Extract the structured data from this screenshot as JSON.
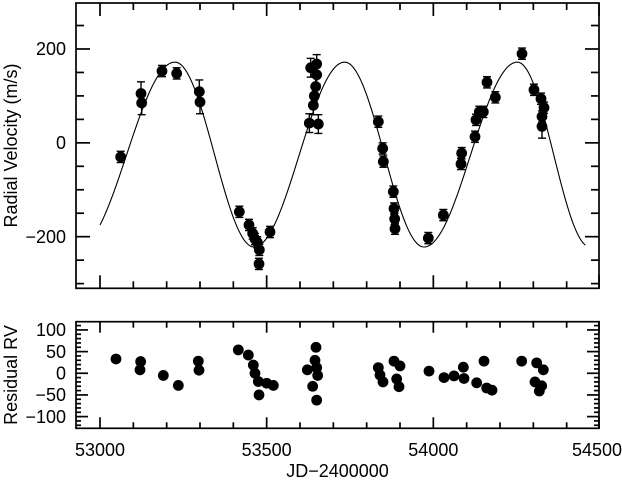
{
  "figure": {
    "background": "#ffffff",
    "foreground": "#000000",
    "marker_color": "#000000",
    "curve_color": "#000000"
  },
  "chart_data": [
    {
      "id": "radial-velocity-panel",
      "type": "scatter",
      "title": "",
      "ylabel": "Radial Velocity (m/s)",
      "x_range": [
        52928,
        54497
      ],
      "y_range": [
        -310,
        298
      ],
      "grid": false,
      "x_ticks": [
        {
          "v": 53000,
          "label": "53000"
        },
        {
          "v": 53500,
          "label": "53500"
        },
        {
          "v": 54000,
          "label": "54000"
        },
        {
          "v": 54500,
          "label": "54500"
        }
      ],
      "x_minor_step": 100,
      "x_tick_labels_shown": false,
      "y_ticks": [
        {
          "v": 200,
          "label": "200"
        },
        {
          "v": 0,
          "label": "0"
        },
        {
          "v": -200,
          "label": "−200"
        }
      ],
      "y_minor_step": 50,
      "points_format": "[JD-2400000, RV m/s, error m/s]",
      "points": [
        [
          53062,
          -30,
          12
        ],
        [
          53123,
          105,
          25
        ],
        [
          53125,
          85,
          25
        ],
        [
          53186,
          153,
          12
        ],
        [
          53230,
          148,
          12
        ],
        [
          53298,
          109,
          25
        ],
        [
          53300,
          87,
          25
        ],
        [
          53418,
          -147,
          12
        ],
        [
          53447,
          -175,
          12
        ],
        [
          53458,
          -193,
          12
        ],
        [
          53465,
          -205,
          12
        ],
        [
          53472,
          -212,
          12
        ],
        [
          53478,
          -228,
          12
        ],
        [
          53477,
          -258,
          12
        ],
        [
          53510,
          -190,
          12
        ],
        [
          53628,
          42,
          20
        ],
        [
          53655,
          40,
          20
        ],
        [
          53632,
          160,
          20
        ],
        [
          53650,
          168,
          20
        ],
        [
          53650,
          145,
          20
        ],
        [
          53647,
          120,
          20
        ],
        [
          53643,
          100,
          20
        ],
        [
          53640,
          80,
          20
        ],
        [
          53835,
          45,
          12
        ],
        [
          53848,
          -12,
          12
        ],
        [
          53850,
          -40,
          12
        ],
        [
          53880,
          -104,
          12
        ],
        [
          53882,
          -140,
          12
        ],
        [
          53884,
          -162,
          12
        ],
        [
          53885,
          -183,
          12
        ],
        [
          53985,
          -203,
          12
        ],
        [
          54030,
          -154,
          12
        ],
        [
          54083,
          -45,
          12
        ],
        [
          54085,
          -22,
          12
        ],
        [
          54125,
          13,
          12
        ],
        [
          54128,
          49,
          12
        ],
        [
          54138,
          66,
          12
        ],
        [
          54150,
          66,
          12
        ],
        [
          54161,
          129,
          12
        ],
        [
          54186,
          97,
          12
        ],
        [
          54266,
          190,
          12
        ],
        [
          54302,
          113,
          12
        ],
        [
          54323,
          94,
          12
        ],
        [
          54332,
          75,
          12
        ],
        [
          54326,
          56,
          12
        ],
        [
          54326,
          35,
          25
        ]
      ],
      "model_curve": {
        "description": "Keplerian orbit fit, approximated by piecewise cosine through extrema",
        "extrema": [
          [
            52935,
            -222
          ],
          [
            53225,
            172
          ],
          [
            53462,
            -222
          ],
          [
            53734,
            172
          ],
          [
            53972,
            -222
          ],
          [
            54252,
            172
          ],
          [
            54470,
            -222
          ]
        ],
        "draw_range": [
          53000,
          54458
        ],
        "period_days": 515,
        "semiamplitude_ms": 197,
        "offset_ms": -25
      }
    },
    {
      "id": "residual-panel",
      "type": "scatter",
      "title": "",
      "ylabel": "Residual RV",
      "xlabel": "JD−2400000",
      "x_range": [
        52928,
        54497
      ],
      "y_range": [
        -127,
        119
      ],
      "grid": false,
      "x_ticks": [
        {
          "v": 53000,
          "label": "53000"
        },
        {
          "v": 53500,
          "label": "53500"
        },
        {
          "v": 54000,
          "label": "54000"
        },
        {
          "v": 54500,
          "label": "54500"
        }
      ],
      "x_minor_step": 100,
      "x_tick_labels_shown": true,
      "y_ticks": [
        {
          "v": 100,
          "label": "100"
        },
        {
          "v": 50,
          "label": "50"
        },
        {
          "v": 0,
          "label": "0"
        },
        {
          "v": -50,
          "label": "−50"
        },
        {
          "v": -100,
          "label": "−100"
        }
      ],
      "y_minor_step": 10,
      "points_format": "[JD-2400000, residual m/s]",
      "points": [
        [
          53048,
          33
        ],
        [
          53120,
          8
        ],
        [
          53122,
          27
        ],
        [
          53190,
          -5
        ],
        [
          53235,
          -28
        ],
        [
          53295,
          28
        ],
        [
          53297,
          7
        ],
        [
          53415,
          54
        ],
        [
          53445,
          42
        ],
        [
          53460,
          19
        ],
        [
          53465,
          0
        ],
        [
          53475,
          -19
        ],
        [
          53477,
          -50
        ],
        [
          53500,
          -23
        ],
        [
          53520,
          -28
        ],
        [
          53622,
          8
        ],
        [
          53638,
          -30
        ],
        [
          53645,
          30
        ],
        [
          53648,
          60
        ],
        [
          53650,
          13
        ],
        [
          53653,
          -5
        ],
        [
          53650,
          -62
        ],
        [
          53835,
          13
        ],
        [
          53840,
          -4
        ],
        [
          53849,
          -20
        ],
        [
          53882,
          28
        ],
        [
          53890,
          -13
        ],
        [
          53897,
          -31
        ],
        [
          53900,
          17
        ],
        [
          53987,
          5
        ],
        [
          54032,
          -10
        ],
        [
          54062,
          -6
        ],
        [
          54090,
          14
        ],
        [
          54092,
          -12
        ],
        [
          54130,
          -22
        ],
        [
          54152,
          28
        ],
        [
          54160,
          -34
        ],
        [
          54176,
          -39
        ],
        [
          54265,
          28
        ],
        [
          54310,
          24
        ],
        [
          54330,
          8
        ],
        [
          54305,
          -20
        ],
        [
          54325,
          -29
        ],
        [
          54318,
          -41
        ]
      ]
    }
  ]
}
